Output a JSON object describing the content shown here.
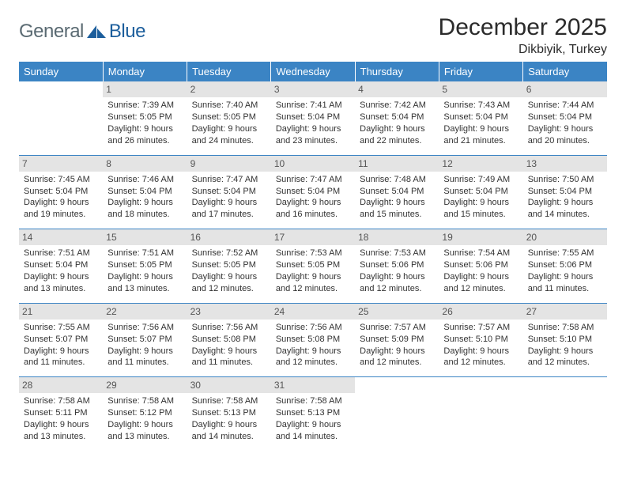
{
  "logo": {
    "text1": "General",
    "text2": "Blue",
    "icon_fill": "#1c5e9c"
  },
  "header": {
    "title": "December 2025",
    "location": "Dikbiyik, Turkey"
  },
  "colors": {
    "header_bg": "#3b84c4",
    "header_text": "#ffffff",
    "daynum_bg": "#e4e4e4",
    "border": "#3b84c4",
    "body_text": "#333333"
  },
  "typography": {
    "title_fontsize": 30,
    "location_fontsize": 16,
    "dow_fontsize": 13,
    "daynum_fontsize": 12,
    "cell_fontsize": 11
  },
  "days_of_week": [
    "Sunday",
    "Monday",
    "Tuesday",
    "Wednesday",
    "Thursday",
    "Friday",
    "Saturday"
  ],
  "weeks": [
    [
      {
        "num": "",
        "lines": []
      },
      {
        "num": "1",
        "lines": [
          "Sunrise: 7:39 AM",
          "Sunset: 5:05 PM",
          "Daylight: 9 hours",
          "and 26 minutes."
        ]
      },
      {
        "num": "2",
        "lines": [
          "Sunrise: 7:40 AM",
          "Sunset: 5:05 PM",
          "Daylight: 9 hours",
          "and 24 minutes."
        ]
      },
      {
        "num": "3",
        "lines": [
          "Sunrise: 7:41 AM",
          "Sunset: 5:04 PM",
          "Daylight: 9 hours",
          "and 23 minutes."
        ]
      },
      {
        "num": "4",
        "lines": [
          "Sunrise: 7:42 AM",
          "Sunset: 5:04 PM",
          "Daylight: 9 hours",
          "and 22 minutes."
        ]
      },
      {
        "num": "5",
        "lines": [
          "Sunrise: 7:43 AM",
          "Sunset: 5:04 PM",
          "Daylight: 9 hours",
          "and 21 minutes."
        ]
      },
      {
        "num": "6",
        "lines": [
          "Sunrise: 7:44 AM",
          "Sunset: 5:04 PM",
          "Daylight: 9 hours",
          "and 20 minutes."
        ]
      }
    ],
    [
      {
        "num": "7",
        "lines": [
          "Sunrise: 7:45 AM",
          "Sunset: 5:04 PM",
          "Daylight: 9 hours",
          "and 19 minutes."
        ]
      },
      {
        "num": "8",
        "lines": [
          "Sunrise: 7:46 AM",
          "Sunset: 5:04 PM",
          "Daylight: 9 hours",
          "and 18 minutes."
        ]
      },
      {
        "num": "9",
        "lines": [
          "Sunrise: 7:47 AM",
          "Sunset: 5:04 PM",
          "Daylight: 9 hours",
          "and 17 minutes."
        ]
      },
      {
        "num": "10",
        "lines": [
          "Sunrise: 7:47 AM",
          "Sunset: 5:04 PM",
          "Daylight: 9 hours",
          "and 16 minutes."
        ]
      },
      {
        "num": "11",
        "lines": [
          "Sunrise: 7:48 AM",
          "Sunset: 5:04 PM",
          "Daylight: 9 hours",
          "and 15 minutes."
        ]
      },
      {
        "num": "12",
        "lines": [
          "Sunrise: 7:49 AM",
          "Sunset: 5:04 PM",
          "Daylight: 9 hours",
          "and 15 minutes."
        ]
      },
      {
        "num": "13",
        "lines": [
          "Sunrise: 7:50 AM",
          "Sunset: 5:04 PM",
          "Daylight: 9 hours",
          "and 14 minutes."
        ]
      }
    ],
    [
      {
        "num": "14",
        "lines": [
          "Sunrise: 7:51 AM",
          "Sunset: 5:04 PM",
          "Daylight: 9 hours",
          "and 13 minutes."
        ]
      },
      {
        "num": "15",
        "lines": [
          "Sunrise: 7:51 AM",
          "Sunset: 5:05 PM",
          "Daylight: 9 hours",
          "and 13 minutes."
        ]
      },
      {
        "num": "16",
        "lines": [
          "Sunrise: 7:52 AM",
          "Sunset: 5:05 PM",
          "Daylight: 9 hours",
          "and 12 minutes."
        ]
      },
      {
        "num": "17",
        "lines": [
          "Sunrise: 7:53 AM",
          "Sunset: 5:05 PM",
          "Daylight: 9 hours",
          "and 12 minutes."
        ]
      },
      {
        "num": "18",
        "lines": [
          "Sunrise: 7:53 AM",
          "Sunset: 5:06 PM",
          "Daylight: 9 hours",
          "and 12 minutes."
        ]
      },
      {
        "num": "19",
        "lines": [
          "Sunrise: 7:54 AM",
          "Sunset: 5:06 PM",
          "Daylight: 9 hours",
          "and 12 minutes."
        ]
      },
      {
        "num": "20",
        "lines": [
          "Sunrise: 7:55 AM",
          "Sunset: 5:06 PM",
          "Daylight: 9 hours",
          "and 11 minutes."
        ]
      }
    ],
    [
      {
        "num": "21",
        "lines": [
          "Sunrise: 7:55 AM",
          "Sunset: 5:07 PM",
          "Daylight: 9 hours",
          "and 11 minutes."
        ]
      },
      {
        "num": "22",
        "lines": [
          "Sunrise: 7:56 AM",
          "Sunset: 5:07 PM",
          "Daylight: 9 hours",
          "and 11 minutes."
        ]
      },
      {
        "num": "23",
        "lines": [
          "Sunrise: 7:56 AM",
          "Sunset: 5:08 PM",
          "Daylight: 9 hours",
          "and 11 minutes."
        ]
      },
      {
        "num": "24",
        "lines": [
          "Sunrise: 7:56 AM",
          "Sunset: 5:08 PM",
          "Daylight: 9 hours",
          "and 12 minutes."
        ]
      },
      {
        "num": "25",
        "lines": [
          "Sunrise: 7:57 AM",
          "Sunset: 5:09 PM",
          "Daylight: 9 hours",
          "and 12 minutes."
        ]
      },
      {
        "num": "26",
        "lines": [
          "Sunrise: 7:57 AM",
          "Sunset: 5:10 PM",
          "Daylight: 9 hours",
          "and 12 minutes."
        ]
      },
      {
        "num": "27",
        "lines": [
          "Sunrise: 7:58 AM",
          "Sunset: 5:10 PM",
          "Daylight: 9 hours",
          "and 12 minutes."
        ]
      }
    ],
    [
      {
        "num": "28",
        "lines": [
          "Sunrise: 7:58 AM",
          "Sunset: 5:11 PM",
          "Daylight: 9 hours",
          "and 13 minutes."
        ]
      },
      {
        "num": "29",
        "lines": [
          "Sunrise: 7:58 AM",
          "Sunset: 5:12 PM",
          "Daylight: 9 hours",
          "and 13 minutes."
        ]
      },
      {
        "num": "30",
        "lines": [
          "Sunrise: 7:58 AM",
          "Sunset: 5:13 PM",
          "Daylight: 9 hours",
          "and 14 minutes."
        ]
      },
      {
        "num": "31",
        "lines": [
          "Sunrise: 7:58 AM",
          "Sunset: 5:13 PM",
          "Daylight: 9 hours",
          "and 14 minutes."
        ]
      },
      {
        "num": "",
        "lines": []
      },
      {
        "num": "",
        "lines": []
      },
      {
        "num": "",
        "lines": []
      }
    ]
  ]
}
